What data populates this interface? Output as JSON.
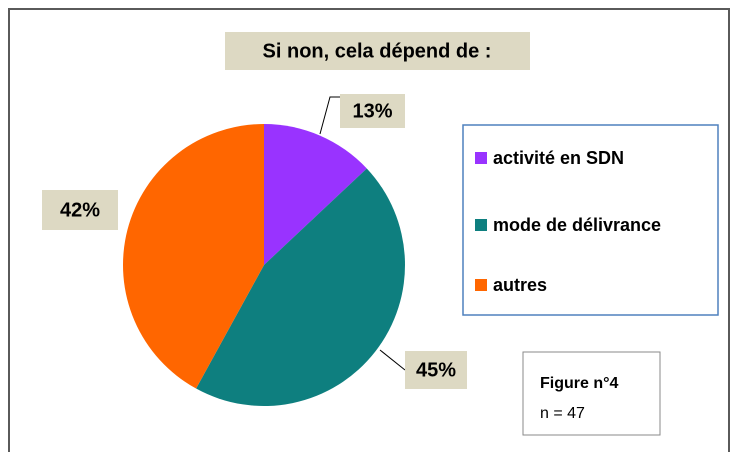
{
  "chart_data": {
    "type": "pie",
    "title": "Si non, cela dépend de :",
    "categories": [
      "activité en SDN",
      "mode de délivrance",
      "autres"
    ],
    "values": [
      13,
      45,
      42
    ],
    "value_labels": [
      "13%",
      "45%",
      "42%"
    ],
    "colors": [
      "#9933ff",
      "#0e7f7f",
      "#ff6600"
    ],
    "legend": "right",
    "annotation": {
      "title": "Figure n°4",
      "text": "n = 47"
    }
  }
}
